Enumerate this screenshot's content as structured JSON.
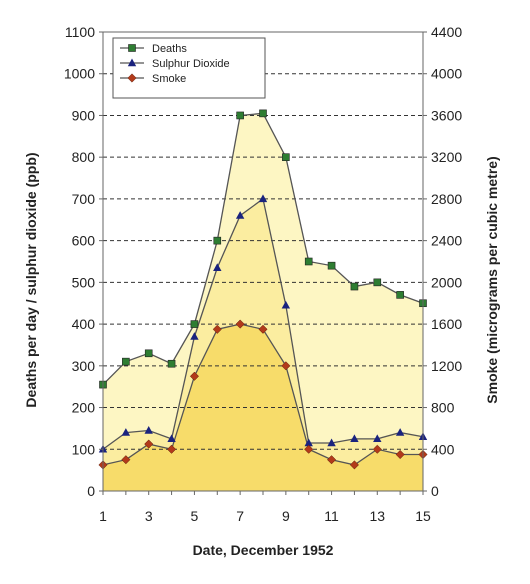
{
  "chart_data": {
    "type": "line",
    "title": "",
    "xlabel": "Date, December 1952",
    "ylabel_left": "Deaths per day / sulphur dioxide (ppb)",
    "ylabel_right": "Smoke (micrograms per cubic metre)",
    "x": [
      1,
      2,
      3,
      4,
      5,
      6,
      7,
      8,
      9,
      10,
      11,
      12,
      13,
      14,
      15
    ],
    "x_tick_labels": [
      "1",
      "3",
      "5",
      "7",
      "9",
      "11",
      "13",
      "15"
    ],
    "ylim_left": [
      0,
      1100
    ],
    "ylim_right": [
      0,
      4400
    ],
    "y_ticks_left": [
      "0",
      "100",
      "200",
      "300",
      "400",
      "500",
      "600",
      "700",
      "800",
      "900",
      "1000",
      "1100"
    ],
    "y_ticks_right": [
      "0",
      "400",
      "800",
      "1200",
      "1600",
      "2000",
      "2400",
      "2800",
      "3200",
      "3600",
      "4000",
      "4400"
    ],
    "grid": "horizontal dashed",
    "legend_position": "top-left",
    "series": [
      {
        "name": "Deaths",
        "axis": "left",
        "marker": "square",
        "color": "#2e7d32",
        "fill": "#fdf6c3",
        "values": [
          255,
          310,
          330,
          305,
          400,
          600,
          900,
          905,
          800,
          550,
          540,
          490,
          500,
          470,
          450
        ]
      },
      {
        "name": "Sulphur Dioxide",
        "axis": "left",
        "marker": "triangle",
        "color": "#1a237e",
        "fill": "#fbeda0",
        "values": [
          100,
          140,
          145,
          125,
          370,
          535,
          660,
          700,
          445,
          115,
          115,
          125,
          125,
          140,
          130
        ]
      },
      {
        "name": "Smoke",
        "axis": "right",
        "marker": "diamond",
        "color": "#b23a1a",
        "fill": "#f7dc6a",
        "values": [
          250,
          300,
          450,
          400,
          1100,
          1550,
          1600,
          1550,
          1200,
          400,
          300,
          250,
          400,
          350,
          350
        ]
      }
    ]
  }
}
